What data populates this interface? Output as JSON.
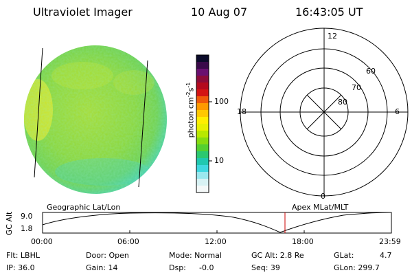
{
  "header": {
    "instrument": "Ultraviolet Imager",
    "date": "10 Aug 07",
    "time": "16:43:05 UT"
  },
  "colorbar": {
    "label": "photon cm",
    "label_exp1": "-2",
    "label_mid": "s",
    "label_exp2": "-1",
    "ticks": [
      "100",
      "10"
    ],
    "colors": [
      "#0b0b2a",
      "#3a0a4a",
      "#6a1070",
      "#8c0c3a",
      "#b40a1e",
      "#d41414",
      "#f05a0a",
      "#ff9a00",
      "#ffc800",
      "#ffee00",
      "#e8f000",
      "#b8e800",
      "#86dc10",
      "#54d030",
      "#2cc870",
      "#20c8b0",
      "#40d8e0",
      "#9ae8ee",
      "#d8f2f4",
      "#f4f8f8"
    ]
  },
  "polar": {
    "mlt_labels": {
      "top": "12",
      "left": "18",
      "right": "6",
      "bottom": "0"
    },
    "lat_labels": [
      "60",
      "70",
      "80"
    ]
  },
  "timeline": {
    "left_title": "Geographic Lat/Lon",
    "right_title": "Apex MLat/MLT",
    "ylabel": "GC Alt",
    "ytick_top": "9.0",
    "ytick_bottom": "1.8",
    "xticks": [
      "00:00",
      "06:00",
      "12:00",
      "18:00",
      "23:59"
    ],
    "marker_color": "#cc0000"
  },
  "info": {
    "row1": {
      "flt": "Flt: LBHL",
      "door": "Door: Open",
      "mode": "Mode: Normal",
      "gcalt": "GC Alt: 2.8 Re",
      "glat_label": "GLat:",
      "glat_value": "4.7"
    },
    "row2": {
      "ip": "IP: 36.0",
      "gain": "Gain: 14",
      "dsp": "Dsp:",
      "dsp_value": "-0.0",
      "seq": "Seq: 39",
      "glon": "GLon: 299.7"
    }
  }
}
